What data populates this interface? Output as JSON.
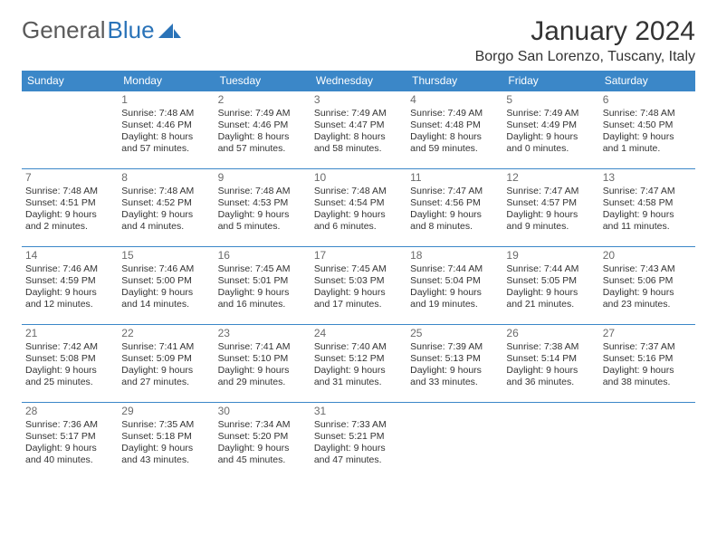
{
  "brand": {
    "part1": "General",
    "part2": "Blue"
  },
  "header": {
    "monthTitle": "January 2024",
    "location": "Borgo San Lorenzo, Tuscany, Italy"
  },
  "colors": {
    "headerBg": "#3b87c8",
    "headerText": "#ffffff",
    "border": "#3b87c8",
    "dayNum": "#6b6b6b",
    "text": "#333333",
    "logoGray": "#5a5a5a",
    "logoBlue": "#2a73b8",
    "bg": "#ffffff"
  },
  "dayHeaders": [
    "Sunday",
    "Monday",
    "Tuesday",
    "Wednesday",
    "Thursday",
    "Friday",
    "Saturday"
  ],
  "weeks": [
    [
      null,
      {
        "n": "1",
        "sr": "Sunrise: 7:48 AM",
        "ss": "Sunset: 4:46 PM",
        "dl": "Daylight: 8 hours and 57 minutes."
      },
      {
        "n": "2",
        "sr": "Sunrise: 7:49 AM",
        "ss": "Sunset: 4:46 PM",
        "dl": "Daylight: 8 hours and 57 minutes."
      },
      {
        "n": "3",
        "sr": "Sunrise: 7:49 AM",
        "ss": "Sunset: 4:47 PM",
        "dl": "Daylight: 8 hours and 58 minutes."
      },
      {
        "n": "4",
        "sr": "Sunrise: 7:49 AM",
        "ss": "Sunset: 4:48 PM",
        "dl": "Daylight: 8 hours and 59 minutes."
      },
      {
        "n": "5",
        "sr": "Sunrise: 7:49 AM",
        "ss": "Sunset: 4:49 PM",
        "dl": "Daylight: 9 hours and 0 minutes."
      },
      {
        "n": "6",
        "sr": "Sunrise: 7:48 AM",
        "ss": "Sunset: 4:50 PM",
        "dl": "Daylight: 9 hours and 1 minute."
      }
    ],
    [
      {
        "n": "7",
        "sr": "Sunrise: 7:48 AM",
        "ss": "Sunset: 4:51 PM",
        "dl": "Daylight: 9 hours and 2 minutes."
      },
      {
        "n": "8",
        "sr": "Sunrise: 7:48 AM",
        "ss": "Sunset: 4:52 PM",
        "dl": "Daylight: 9 hours and 4 minutes."
      },
      {
        "n": "9",
        "sr": "Sunrise: 7:48 AM",
        "ss": "Sunset: 4:53 PM",
        "dl": "Daylight: 9 hours and 5 minutes."
      },
      {
        "n": "10",
        "sr": "Sunrise: 7:48 AM",
        "ss": "Sunset: 4:54 PM",
        "dl": "Daylight: 9 hours and 6 minutes."
      },
      {
        "n": "11",
        "sr": "Sunrise: 7:47 AM",
        "ss": "Sunset: 4:56 PM",
        "dl": "Daylight: 9 hours and 8 minutes."
      },
      {
        "n": "12",
        "sr": "Sunrise: 7:47 AM",
        "ss": "Sunset: 4:57 PM",
        "dl": "Daylight: 9 hours and 9 minutes."
      },
      {
        "n": "13",
        "sr": "Sunrise: 7:47 AM",
        "ss": "Sunset: 4:58 PM",
        "dl": "Daylight: 9 hours and 11 minutes."
      }
    ],
    [
      {
        "n": "14",
        "sr": "Sunrise: 7:46 AM",
        "ss": "Sunset: 4:59 PM",
        "dl": "Daylight: 9 hours and 12 minutes."
      },
      {
        "n": "15",
        "sr": "Sunrise: 7:46 AM",
        "ss": "Sunset: 5:00 PM",
        "dl": "Daylight: 9 hours and 14 minutes."
      },
      {
        "n": "16",
        "sr": "Sunrise: 7:45 AM",
        "ss": "Sunset: 5:01 PM",
        "dl": "Daylight: 9 hours and 16 minutes."
      },
      {
        "n": "17",
        "sr": "Sunrise: 7:45 AM",
        "ss": "Sunset: 5:03 PM",
        "dl": "Daylight: 9 hours and 17 minutes."
      },
      {
        "n": "18",
        "sr": "Sunrise: 7:44 AM",
        "ss": "Sunset: 5:04 PM",
        "dl": "Daylight: 9 hours and 19 minutes."
      },
      {
        "n": "19",
        "sr": "Sunrise: 7:44 AM",
        "ss": "Sunset: 5:05 PM",
        "dl": "Daylight: 9 hours and 21 minutes."
      },
      {
        "n": "20",
        "sr": "Sunrise: 7:43 AM",
        "ss": "Sunset: 5:06 PM",
        "dl": "Daylight: 9 hours and 23 minutes."
      }
    ],
    [
      {
        "n": "21",
        "sr": "Sunrise: 7:42 AM",
        "ss": "Sunset: 5:08 PM",
        "dl": "Daylight: 9 hours and 25 minutes."
      },
      {
        "n": "22",
        "sr": "Sunrise: 7:41 AM",
        "ss": "Sunset: 5:09 PM",
        "dl": "Daylight: 9 hours and 27 minutes."
      },
      {
        "n": "23",
        "sr": "Sunrise: 7:41 AM",
        "ss": "Sunset: 5:10 PM",
        "dl": "Daylight: 9 hours and 29 minutes."
      },
      {
        "n": "24",
        "sr": "Sunrise: 7:40 AM",
        "ss": "Sunset: 5:12 PM",
        "dl": "Daylight: 9 hours and 31 minutes."
      },
      {
        "n": "25",
        "sr": "Sunrise: 7:39 AM",
        "ss": "Sunset: 5:13 PM",
        "dl": "Daylight: 9 hours and 33 minutes."
      },
      {
        "n": "26",
        "sr": "Sunrise: 7:38 AM",
        "ss": "Sunset: 5:14 PM",
        "dl": "Daylight: 9 hours and 36 minutes."
      },
      {
        "n": "27",
        "sr": "Sunrise: 7:37 AM",
        "ss": "Sunset: 5:16 PM",
        "dl": "Daylight: 9 hours and 38 minutes."
      }
    ],
    [
      {
        "n": "28",
        "sr": "Sunrise: 7:36 AM",
        "ss": "Sunset: 5:17 PM",
        "dl": "Daylight: 9 hours and 40 minutes."
      },
      {
        "n": "29",
        "sr": "Sunrise: 7:35 AM",
        "ss": "Sunset: 5:18 PM",
        "dl": "Daylight: 9 hours and 43 minutes."
      },
      {
        "n": "30",
        "sr": "Sunrise: 7:34 AM",
        "ss": "Sunset: 5:20 PM",
        "dl": "Daylight: 9 hours and 45 minutes."
      },
      {
        "n": "31",
        "sr": "Sunrise: 7:33 AM",
        "ss": "Sunset: 5:21 PM",
        "dl": "Daylight: 9 hours and 47 minutes."
      },
      null,
      null,
      null
    ]
  ]
}
